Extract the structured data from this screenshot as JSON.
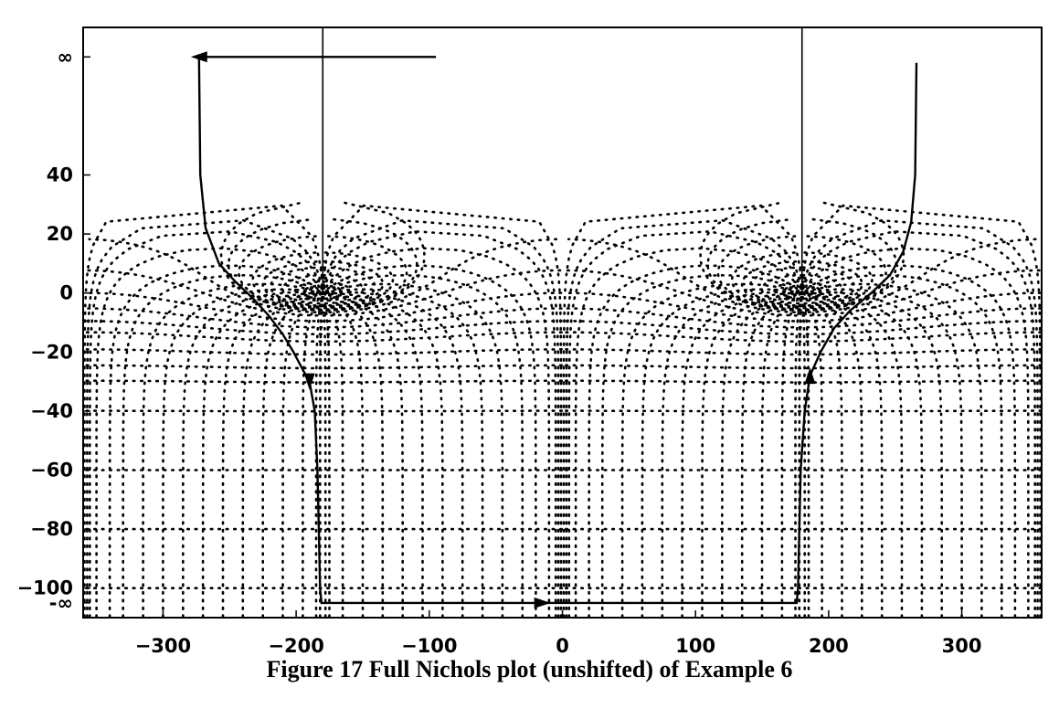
{
  "chart_data": {
    "type": "line",
    "title": "",
    "xlabel": "",
    "ylabel": "",
    "xlim": [
      -360,
      360
    ],
    "ylim": [
      -110,
      90
    ],
    "x_ticks": [
      -300,
      -200,
      -100,
      0,
      100,
      200,
      300
    ],
    "x_tick_labels": [
      "−300",
      "−200",
      "−100",
      "0",
      "100",
      "200",
      "300"
    ],
    "y_ticks": [
      80,
      40,
      20,
      0,
      -20,
      -40,
      -60,
      -80,
      -100,
      -105
    ],
    "y_tick_labels": [
      "∞",
      "40",
      "20",
      "0",
      "−20",
      "−40",
      "−60",
      "−80",
      "−100",
      "-∞"
    ],
    "grid": "Nichols chart grid (dotted M and N contours), repeated every 360°",
    "series": [
      {
        "style": "solid",
        "points": [
          [
            -95,
            80
          ],
          [
            -273,
            80
          ],
          [
            -272,
            40
          ],
          [
            -268,
            22
          ],
          [
            -258,
            10
          ],
          [
            -246,
            4
          ],
          [
            -232,
            -2
          ],
          [
            -220,
            -8
          ],
          [
            -210,
            -14
          ],
          [
            -202,
            -20
          ],
          [
            -195,
            -26
          ],
          [
            -190,
            -30
          ],
          [
            -186,
            -40
          ],
          [
            -184,
            -60
          ],
          [
            -183,
            -80
          ],
          [
            -182,
            -100
          ],
          [
            -181,
            -105
          ],
          [
            176,
            -105
          ],
          [
            177,
            -100
          ],
          [
            178,
            -80
          ],
          [
            179,
            -60
          ],
          [
            182,
            -40
          ],
          [
            186,
            -28
          ],
          [
            194,
            -20
          ],
          [
            204,
            -12
          ],
          [
            216,
            -6
          ],
          [
            232,
            0
          ],
          [
            246,
            6
          ],
          [
            256,
            14
          ],
          [
            262,
            24
          ],
          [
            265,
            40
          ],
          [
            266,
            78
          ]
        ],
        "arrows": [
          {
            "at": [
              -273,
              80
            ],
            "direction": "left"
          },
          {
            "at": [
              -190,
              -30
            ],
            "direction": "down"
          },
          {
            "at": [
              -15,
              -105
            ],
            "direction": "right"
          },
          {
            "at": [
              186,
              -28
            ],
            "direction": "up"
          }
        ]
      }
    ],
    "vertical_markers_x": [
      -180,
      180
    ]
  },
  "caption": "Figure 17  Full Nichols plot (unshifted) of Example 6"
}
